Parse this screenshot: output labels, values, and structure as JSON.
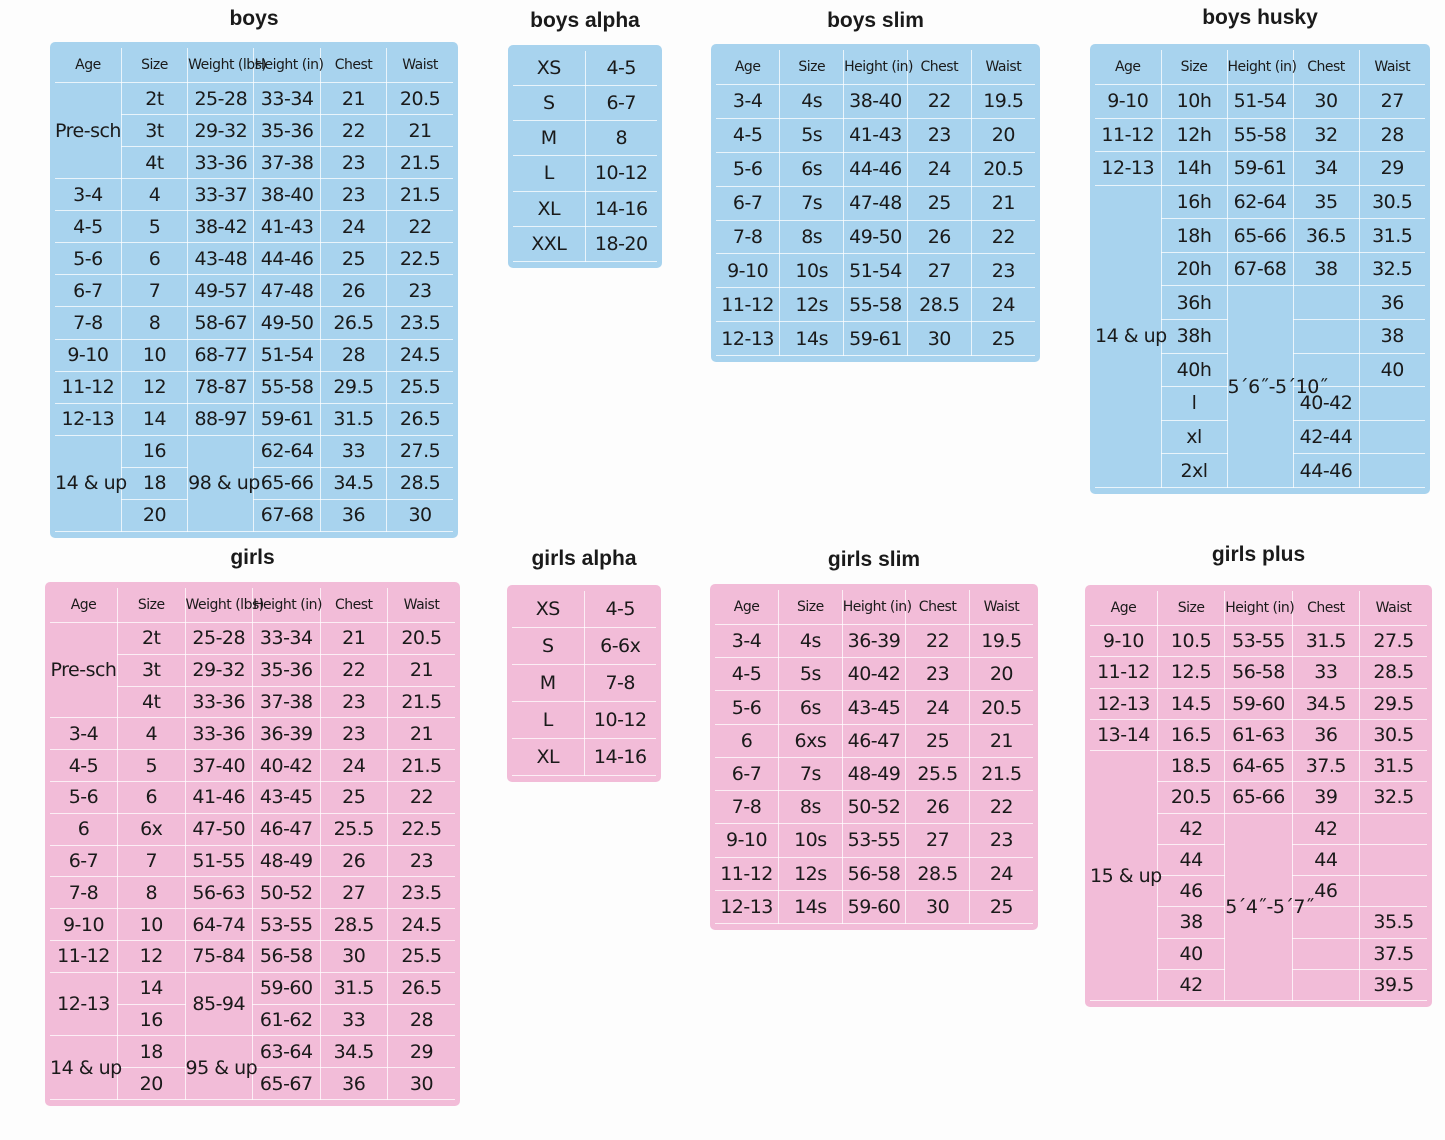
{
  "tables": [
    {
      "title": "boys",
      "color": "#a8d3ee",
      "headers": [
        "Age",
        "Size",
        "Weight (lbs)",
        "Height (in)",
        "Chest",
        "Waist"
      ],
      "rows": [
        [
          {
            "text": "Pre-sch",
            "rowspan": 3
          },
          "2t",
          "25-28",
          "33-34",
          "21",
          "20.5"
        ],
        [
          "3t",
          "29-32",
          "35-36",
          "22",
          "21"
        ],
        [
          "4t",
          "33-36",
          "37-38",
          "23",
          "21.5"
        ],
        [
          "3-4",
          "4",
          "33-37",
          "38-40",
          "23",
          "21.5"
        ],
        [
          "4-5",
          "5",
          "38-42",
          "41-43",
          "24",
          "22"
        ],
        [
          "5-6",
          "6",
          "43-48",
          "44-46",
          "25",
          "22.5"
        ],
        [
          "6-7",
          "7",
          "49-57",
          "47-48",
          "26",
          "23"
        ],
        [
          "7-8",
          "8",
          "58-67",
          "49-50",
          "26.5",
          "23.5"
        ],
        [
          "9-10",
          "10",
          "68-77",
          "51-54",
          "28",
          "24.5"
        ],
        [
          "11-12",
          "12",
          "78-87",
          "55-58",
          "29.5",
          "25.5"
        ],
        [
          "12-13",
          "14",
          "88-97",
          "59-61",
          "31.5",
          "26.5"
        ],
        [
          {
            "text": "14 & up",
            "rowspan": 3
          },
          "16",
          {
            "text": "98 & up",
            "rowspan": 3
          },
          "62-64",
          "33",
          "27.5"
        ],
        [
          "18",
          "65-66",
          "34.5",
          "28.5"
        ],
        [
          "20",
          "67-68",
          "36",
          "30"
        ]
      ]
    },
    {
      "title": "boys alpha",
      "color": "#a8d3ee",
      "rows": [
        [
          "XS",
          "4-5"
        ],
        [
          "S",
          "6-7"
        ],
        [
          "M",
          "8"
        ],
        [
          "L",
          "10-12"
        ],
        [
          "XL",
          "14-16"
        ],
        [
          "XXL",
          "18-20"
        ]
      ]
    },
    {
      "title": "boys slim",
      "color": "#a8d3ee",
      "headers": [
        "Age",
        "Size",
        "Height (in)",
        "Chest",
        "Waist"
      ],
      "rows": [
        [
          "3-4",
          "4s",
          "38-40",
          "22",
          "19.5"
        ],
        [
          "4-5",
          "5s",
          "41-43",
          "23",
          "20"
        ],
        [
          "5-6",
          "6s",
          "44-46",
          "24",
          "20.5"
        ],
        [
          "6-7",
          "7s",
          "47-48",
          "25",
          "21"
        ],
        [
          "7-8",
          "8s",
          "49-50",
          "26",
          "22"
        ],
        [
          "9-10",
          "10s",
          "51-54",
          "27",
          "23"
        ],
        [
          "11-12",
          "12s",
          "55-58",
          "28.5",
          "24"
        ],
        [
          "12-13",
          "14s",
          "59-61",
          "30",
          "25"
        ]
      ]
    },
    {
      "title": "boys husky",
      "color": "#a8d3ee",
      "headers": [
        "Age",
        "Size",
        "Height (in)",
        "Chest",
        "Waist"
      ],
      "rows": [
        [
          "9-10",
          "10h",
          "51-54",
          "30",
          "27"
        ],
        [
          "11-12",
          "12h",
          "55-58",
          "32",
          "28"
        ],
        [
          "12-13",
          "14h",
          "59-61",
          "34",
          "29"
        ],
        [
          {
            "text": "14 & up",
            "rowspan": 9
          },
          "16h",
          "62-64",
          "35",
          "30.5"
        ],
        [
          "18h",
          "65-66",
          "36.5",
          "31.5"
        ],
        [
          "20h",
          "67-68",
          "38",
          "32.5"
        ],
        [
          "36h",
          {
            "text": "5´6˝-5´10˝",
            "rowspan": 6
          },
          null,
          "36"
        ],
        [
          "38h",
          null,
          "38"
        ],
        [
          "40h",
          null,
          "40"
        ],
        [
          "l",
          "40-42",
          null
        ],
        [
          "xl",
          "42-44",
          null
        ],
        [
          "2xl",
          "44-46",
          null
        ]
      ]
    },
    {
      "title": "girls",
      "color": "#f2bcd8",
      "headers": [
        "Age",
        "Size",
        "Weight (lbs)",
        "Height (in)",
        "Chest",
        "Waist"
      ],
      "rows": [
        [
          {
            "text": "Pre-sch",
            "rowspan": 3
          },
          "2t",
          "25-28",
          "33-34",
          "21",
          "20.5"
        ],
        [
          "3t",
          "29-32",
          "35-36",
          "22",
          "21"
        ],
        [
          "4t",
          "33-36",
          "37-38",
          "23",
          "21.5"
        ],
        [
          "3-4",
          "4",
          "33-36",
          "36-39",
          "23",
          "21"
        ],
        [
          "4-5",
          "5",
          "37-40",
          "40-42",
          "24",
          "21.5"
        ],
        [
          "5-6",
          "6",
          "41-46",
          "43-45",
          "25",
          "22"
        ],
        [
          "6",
          "6x",
          "47-50",
          "46-47",
          "25.5",
          "22.5"
        ],
        [
          "6-7",
          "7",
          "51-55",
          "48-49",
          "26",
          "23"
        ],
        [
          "7-8",
          "8",
          "56-63",
          "50-52",
          "27",
          "23.5"
        ],
        [
          "9-10",
          "10",
          "64-74",
          "53-55",
          "28.5",
          "24.5"
        ],
        [
          "11-12",
          "12",
          "75-84",
          "56-58",
          "30",
          "25.5"
        ],
        [
          {
            "text": "12-13",
            "rowspan": 2
          },
          "14",
          {
            "text": "85-94",
            "rowspan": 2
          },
          "59-60",
          "31.5",
          "26.5"
        ],
        [
          "16",
          "61-62",
          "33",
          "28"
        ],
        [
          {
            "text": "14 & up",
            "rowspan": 2
          },
          "18",
          {
            "text": "95 & up",
            "rowspan": 2
          },
          "63-64",
          "34.5",
          "29"
        ],
        [
          "20",
          "65-67",
          "36",
          "30"
        ]
      ]
    },
    {
      "title": "girls alpha",
      "color": "#f2bcd8",
      "rows": [
        [
          "XS",
          "4-5"
        ],
        [
          "S",
          "6-6x"
        ],
        [
          "M",
          "7-8"
        ],
        [
          "L",
          "10-12"
        ],
        [
          "XL",
          "14-16"
        ]
      ]
    },
    {
      "title": "girls slim",
      "color": "#f2bcd8",
      "headers": [
        "Age",
        "Size",
        "Height (in)",
        "Chest",
        "Waist"
      ],
      "rows": [
        [
          "3-4",
          "4s",
          "36-39",
          "22",
          "19.5"
        ],
        [
          "4-5",
          "5s",
          "40-42",
          "23",
          "20"
        ],
        [
          "5-6",
          "6s",
          "43-45",
          "24",
          "20.5"
        ],
        [
          "6",
          "6xs",
          "46-47",
          "25",
          "21"
        ],
        [
          "6-7",
          "7s",
          "48-49",
          "25.5",
          "21.5"
        ],
        [
          "7-8",
          "8s",
          "50-52",
          "26",
          "22"
        ],
        [
          "9-10",
          "10s",
          "53-55",
          "27",
          "23"
        ],
        [
          "11-12",
          "12s",
          "56-58",
          "28.5",
          "24"
        ],
        [
          "12-13",
          "14s",
          "59-60",
          "30",
          "25"
        ]
      ]
    },
    {
      "title": "girls plus",
      "color": "#f2bcd8",
      "headers": [
        "Age",
        "Size",
        "Height (in)",
        "Chest",
        "Waist"
      ],
      "rows": [
        [
          "9-10",
          "10.5",
          "53-55",
          "31.5",
          "27.5"
        ],
        [
          "11-12",
          "12.5",
          "56-58",
          "33",
          "28.5"
        ],
        [
          "12-13",
          "14.5",
          "59-60",
          "34.5",
          "29.5"
        ],
        [
          "13-14",
          "16.5",
          "61-63",
          "36",
          "30.5"
        ],
        [
          {
            "text": "15 & up",
            "rowspan": 8
          },
          "18.5",
          "64-65",
          "37.5",
          "31.5"
        ],
        [
          "20.5",
          "65-66",
          "39",
          "32.5"
        ],
        [
          "42",
          {
            "text": "5´4˝-5´7˝",
            "rowspan": 6
          },
          "42",
          null
        ],
        [
          "44",
          "44",
          null
        ],
        [
          "46",
          "46",
          null
        ],
        [
          "38",
          null,
          "35.5"
        ],
        [
          "40",
          null,
          "37.5"
        ],
        [
          "42",
          null,
          "39.5"
        ]
      ]
    }
  ]
}
